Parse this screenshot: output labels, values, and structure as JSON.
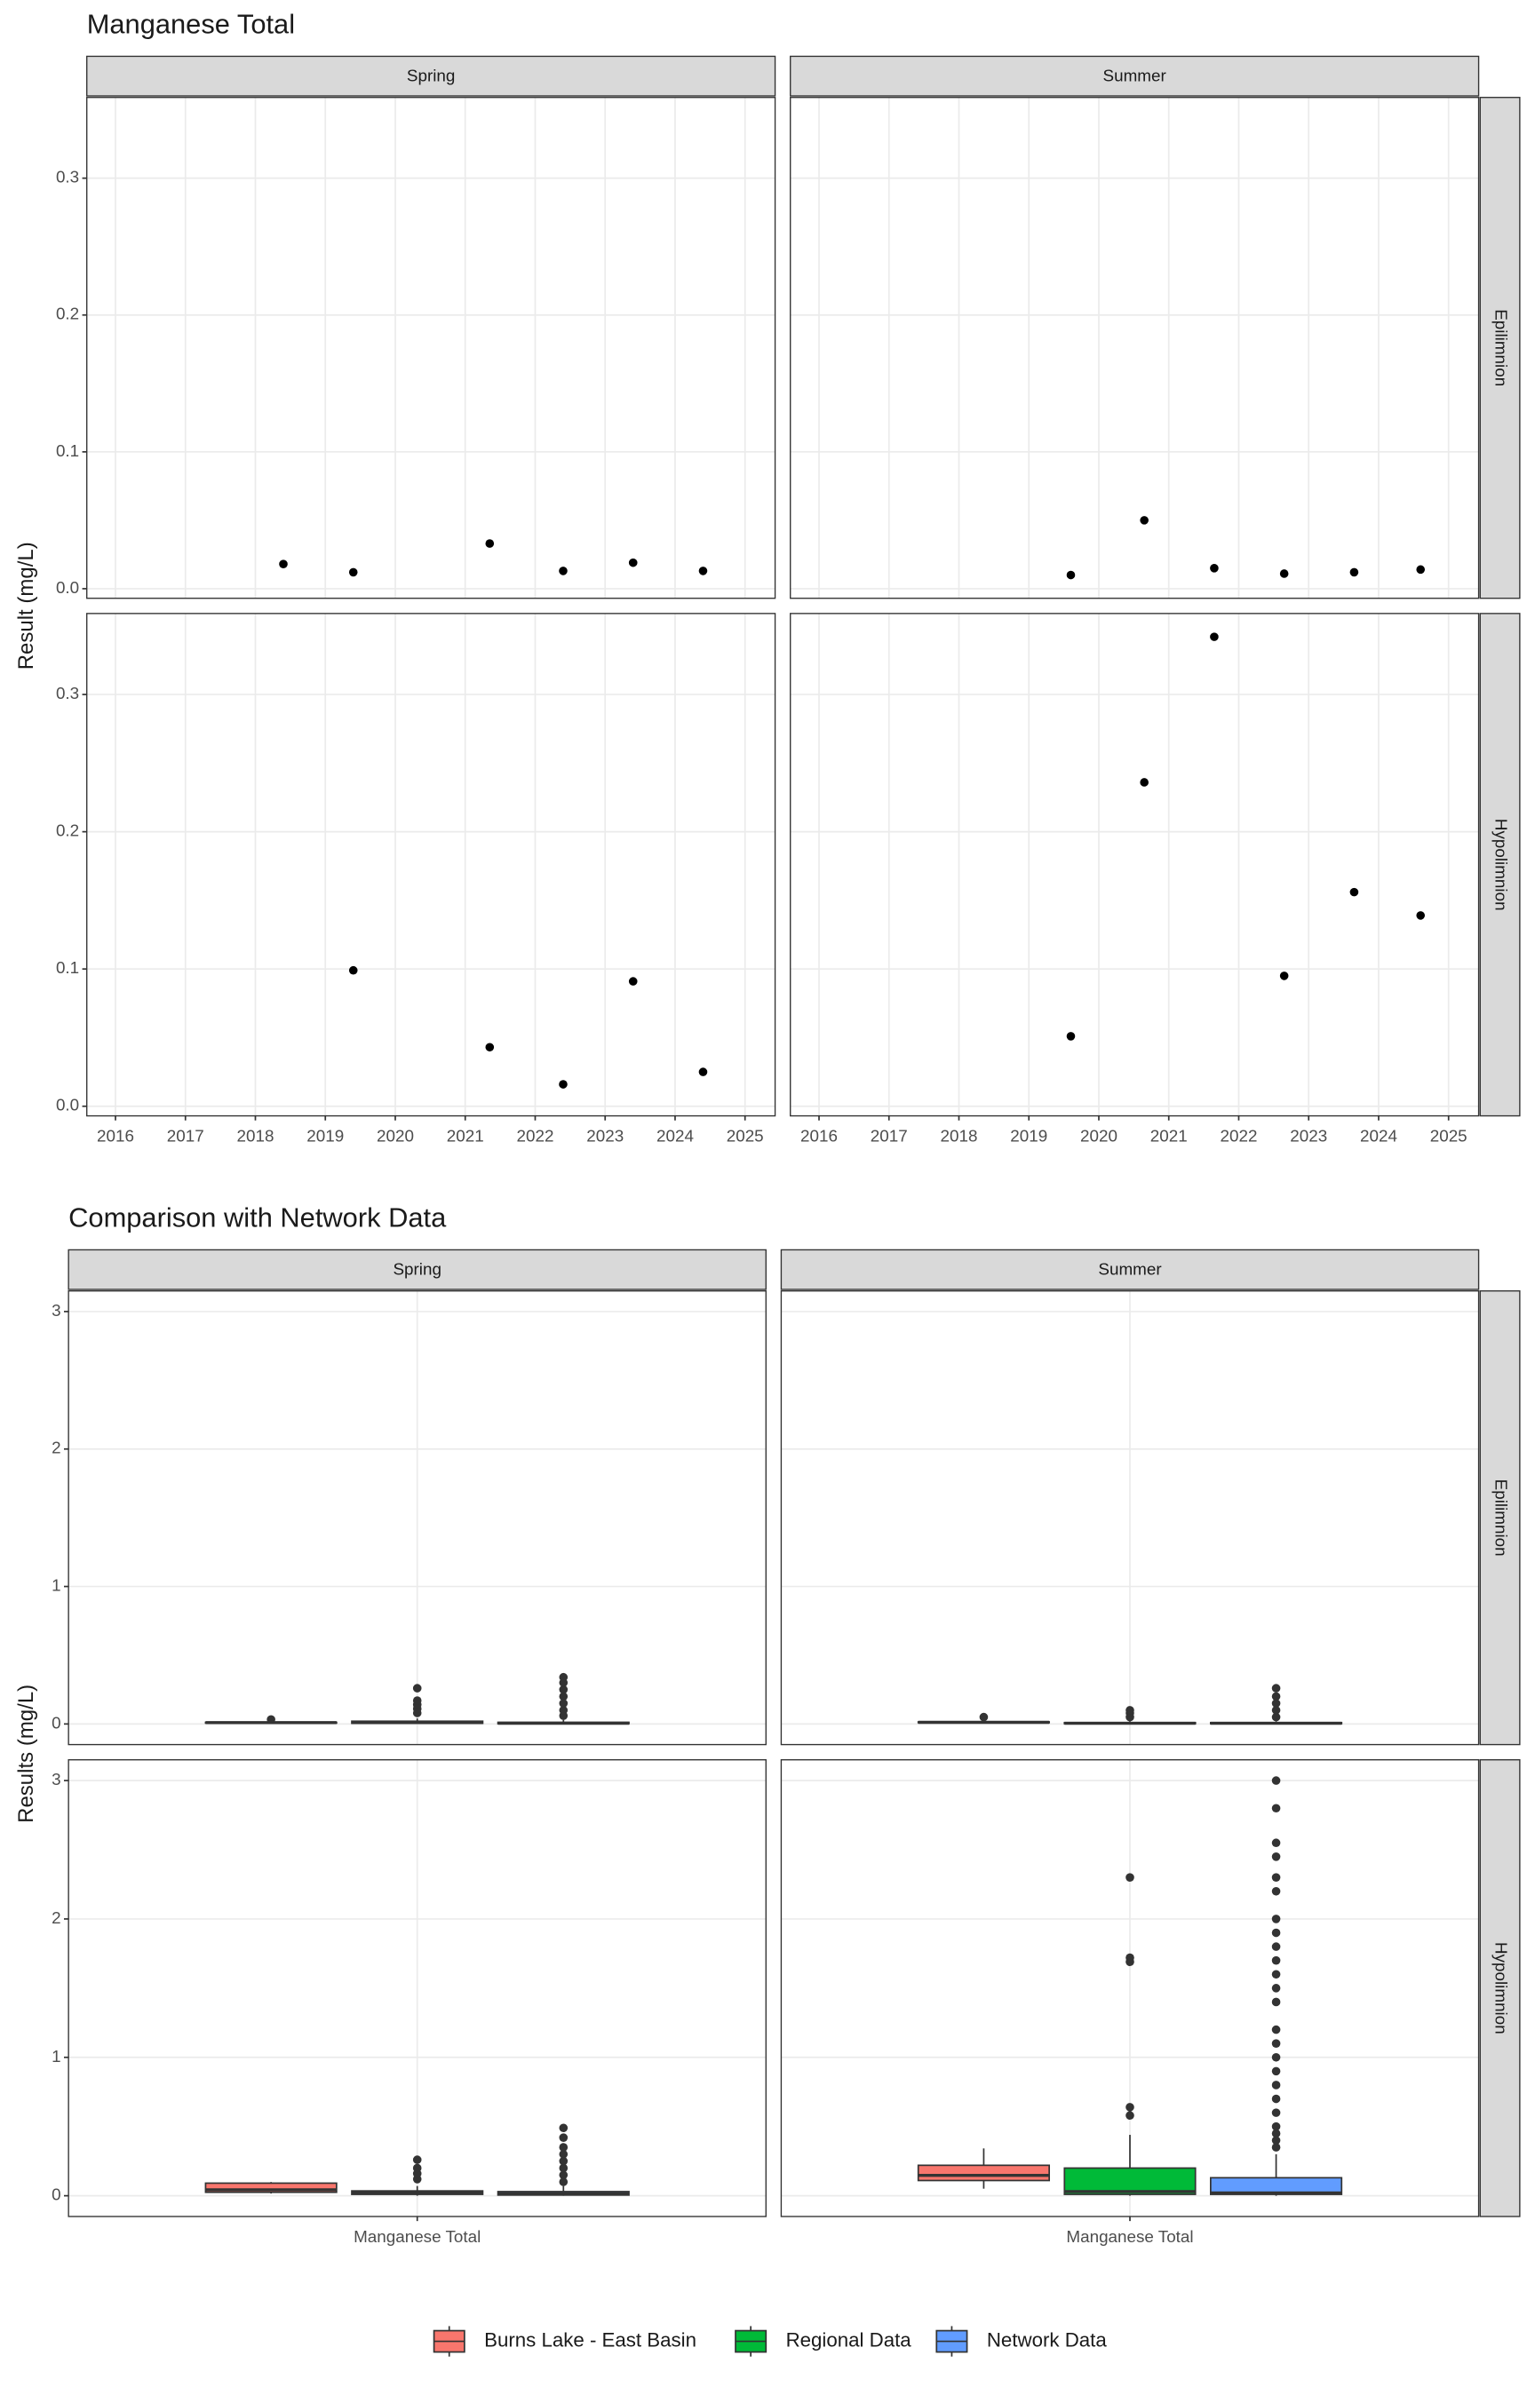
{
  "chart_data": [
    {
      "type": "scatter",
      "title": "Manganese Total",
      "y_label": "Result (mg/L)",
      "facet_cols": [
        "Spring",
        "Summer"
      ],
      "facet_rows": [
        "Epilimnion",
        "Hypolimnion"
      ],
      "color": "#000000",
      "grid": true,
      "xlim": [
        2015.59,
        2025.43
      ],
      "xticks": [
        2016,
        2017,
        2018,
        2019,
        2020,
        2021,
        2022,
        2023,
        2024,
        2025
      ],
      "ylim": [
        -0.007,
        0.359
      ],
      "yticks": [
        {
          "value": 0,
          "label": "0.0"
        },
        0.1,
        0.2,
        0.3
      ],
      "panels": [
        [
          {
            "x": [
              2018.4,
              2019.4,
              2021.35,
              2022.4,
              2023.4,
              2024.4
            ],
            "y": [
              0.018,
              0.012,
              0.033,
              0.013,
              0.019,
              0.013
            ]
          },
          {
            "x": [
              2019.6,
              2020.65,
              2021.65,
              2022.65,
              2023.65,
              2024.6
            ],
            "y": [
              0.01,
              0.05,
              0.015,
              0.011,
              0.012,
              0.014
            ]
          }
        ],
        [
          {
            "x": [
              2019.4,
              2021.35,
              2022.4,
              2023.4,
              2024.4
            ],
            "y": [
              0.099,
              0.043,
              0.016,
              0.091,
              0.025
            ]
          },
          {
            "x": [
              2019.6,
              2020.65,
              2021.65,
              2022.65,
              2023.65,
              2024.6
            ],
            "y": [
              0.051,
              0.236,
              0.342,
              0.095,
              0.156,
              0.139
            ]
          }
        ]
      ]
    },
    {
      "type": "boxplot",
      "title": "Comparison with Network Data",
      "y_label": "Results (mg/L)",
      "facet_cols": [
        "Spring",
        "Summer"
      ],
      "facet_rows": [
        "Epilimnion",
        "Hypolimnion"
      ],
      "categories": [
        "Manganese Total"
      ],
      "grid": true,
      "legend": "bottom",
      "ylim": [
        -0.15,
        3.15
      ],
      "yticks": [
        0,
        1,
        2,
        3
      ],
      "series": [
        {
          "name": "Burns Lake - East Basin",
          "color": "#F8766D"
        },
        {
          "name": "Regional Data",
          "color": "#00BA38"
        },
        {
          "name": "Network Data",
          "color": "#619CFF"
        }
      ],
      "panels": [
        [
          [
            {
              "low": 0.005,
              "q1": 0.008,
              "median": 0.01,
              "q3": 0.012,
              "high": 0.018,
              "outliers": [
                0.033
              ]
            },
            {
              "low": 0,
              "q1": 0.005,
              "median": 0.01,
              "q3": 0.02,
              "high": 0.04,
              "outliers": [
                0.08,
                0.11,
                0.14,
                0.17,
                0.26
              ]
            },
            {
              "low": 0,
              "q1": 0.002,
              "median": 0.005,
              "q3": 0.012,
              "high": 0.03,
              "outliers": [
                0.06,
                0.1,
                0.15,
                0.2,
                0.25,
                0.3,
                0.34
              ]
            }
          ],
          [
            {
              "low": 0.009,
              "q1": 0.01,
              "median": 0.012,
              "q3": 0.015,
              "high": 0.02,
              "outliers": [
                0.05
              ]
            },
            {
              "low": 0,
              "q1": 0.002,
              "median": 0.005,
              "q3": 0.01,
              "high": 0.02,
              "outliers": [
                0.05,
                0.08,
                0.1
              ]
            },
            {
              "low": 0,
              "q1": 0.002,
              "median": 0.005,
              "q3": 0.01,
              "high": 0.02,
              "outliers": [
                0.05,
                0.1,
                0.15,
                0.2,
                0.26
              ]
            }
          ]
        ],
        [
          [
            {
              "low": 0.016,
              "q1": 0.025,
              "median": 0.043,
              "q3": 0.091,
              "high": 0.099,
              "outliers": []
            },
            {
              "low": 0,
              "q1": 0.01,
              "median": 0.02,
              "q3": 0.035,
              "high": 0.07,
              "outliers": [
                0.12,
                0.16,
                0.2,
                0.26
              ]
            },
            {
              "low": 0,
              "q1": 0.005,
              "median": 0.015,
              "q3": 0.03,
              "high": 0.07,
              "outliers": [
                0.1,
                0.15,
                0.2,
                0.25,
                0.3,
                0.35,
                0.42,
                0.49
              ]
            }
          ],
          [
            {
              "low": 0.051,
              "q1": 0.11,
              "median": 0.147,
              "q3": 0.22,
              "high": 0.342,
              "outliers": []
            },
            {
              "low": 0,
              "q1": 0.01,
              "median": 0.03,
              "q3": 0.2,
              "high": 0.44,
              "outliers": [
                0.58,
                0.64,
                1.69,
                1.72,
                2.3
              ]
            },
            {
              "low": 0,
              "q1": 0.01,
              "median": 0.02,
              "q3": 0.13,
              "high": 0.3,
              "outliers": [
                0.35,
                0.4,
                0.45,
                0.5,
                0.6,
                0.7,
                0.8,
                0.9,
                1.0,
                1.1,
                1.2,
                1.4,
                1.5,
                1.6,
                1.7,
                1.8,
                1.9,
                2.0,
                2.2,
                2.3,
                2.45,
                2.55,
                2.8,
                3.0
              ]
            }
          ]
        ]
      ]
    }
  ]
}
